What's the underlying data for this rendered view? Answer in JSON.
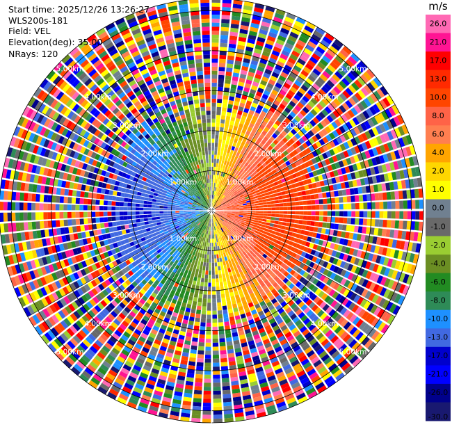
{
  "header": {
    "start_time": "Start time: 2025/12/26 13:26:27",
    "site": "WLS200s-181",
    "field": "Field: VEL",
    "elevation": "Elevation(deg): 35.00",
    "nrays": "NRays: 120"
  },
  "chart_data": {
    "type": "heatmap",
    "projection": "polar-ppi",
    "field": "VEL",
    "nrays": 120,
    "elevation_deg": 35.0,
    "ring_labels": [
      "1.00km",
      "2.00km",
      "3.00km",
      "4.00km",
      "5.00km"
    ],
    "range_rings_km": [
      1,
      2,
      3,
      4,
      5
    ],
    "max_range_km": 5.3,
    "colorbar": {
      "title": "m/s",
      "ticks": [
        "26.0",
        "21.0",
        "17.0",
        "13.0",
        "10.0",
        "8.0",
        "6.0",
        "4.0",
        "2.0",
        "1.0",
        "0.0",
        "-1.0",
        "-2.0",
        "-4.0",
        "-6.0",
        "-8.0",
        "-10.0",
        "-13.0",
        "-17.0",
        "-21.0",
        "-26.0",
        "-30.0"
      ],
      "colors": [
        "#ff69b4",
        "#ff1493",
        "#ff0000",
        "#ff2a00",
        "#ff4500",
        "#ff6347",
        "#ff7f50",
        "#ffa500",
        "#ffd700",
        "#ffff00",
        "#708090",
        "#696969",
        "#9acd32",
        "#6b8e23",
        "#228b22",
        "#2e8b57",
        "#1e90ff",
        "#4169e1",
        "#0000cd",
        "#0000ff",
        "#00008b",
        "#191970"
      ],
      "range": [
        -30,
        30
      ]
    },
    "velocity_pattern": {
      "description_values": "approaching (negative) to the west, receding (positive) to the east, noise beyond ~2.5km",
      "max_inner_speed_ms": 13,
      "signal_range_km": 2.6
    }
  }
}
